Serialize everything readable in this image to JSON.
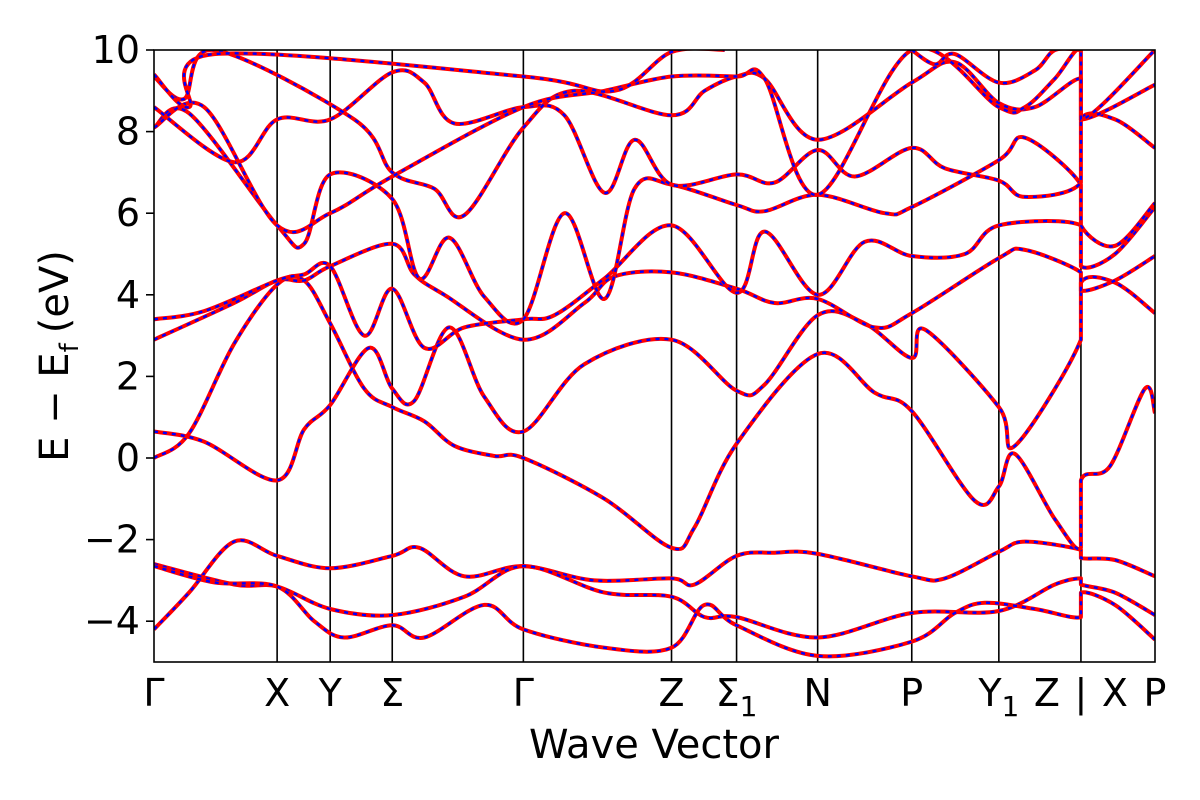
{
  "chart_data": {
    "type": "line",
    "xlabel": "Wave Vector",
    "ylabel_main": "E − E",
    "ylabel_sub": "f",
    "ylabel_unit": "(eV)",
    "ylim": [
      -5,
      10
    ],
    "yticks": [
      10,
      8,
      6,
      4,
      2,
      0,
      -2,
      -4
    ],
    "ytick_labels": [
      "10",
      "8",
      "6",
      "4",
      "2",
      "0",
      "−2",
      "−4"
    ],
    "kpoints": [
      {
        "label": "Γ",
        "sub": "",
        "x": 0.0
      },
      {
        "label": "X",
        "sub": "",
        "x": 1.23
      },
      {
        "label": "Y",
        "sub": "",
        "x": 1.76
      },
      {
        "label": "Σ",
        "sub": "",
        "x": 2.38
      },
      {
        "label": "Γ",
        "sub": "",
        "x": 3.69
      },
      {
        "label": "Z",
        "sub": "",
        "x": 5.17
      },
      {
        "label": "Σ",
        "sub": "1",
        "x": 5.82
      },
      {
        "label": "N",
        "sub": "",
        "x": 6.63
      },
      {
        "label": "P",
        "sub": "",
        "x": 7.57
      },
      {
        "label": "Y",
        "sub": "1",
        "x": 8.44
      },
      {
        "label": "Z",
        "sub": "",
        "x": 9.26
      },
      {
        "label": "X",
        "sub": "",
        "x": 9.26
      },
      {
        "label": "P",
        "sub": "",
        "x": 10.0
      }
    ],
    "xlim": [
      0,
      10
    ],
    "break_label": "|",
    "series_colors": {
      "solid": "#ff0000",
      "dashed": "#0000ff"
    },
    "bands": [
      [
        [
          0,
          -4.2
        ],
        [
          0.35,
          -3.3
        ],
        [
          0.8,
          -2.05
        ],
        [
          1.23,
          -2.4
        ],
        [
          1.76,
          -2.7
        ],
        [
          2.38,
          -2.4
        ],
        [
          2.65,
          -2.2
        ],
        [
          3.1,
          -2.9
        ],
        [
          3.69,
          -2.65
        ],
        [
          4.4,
          -3.0
        ],
        [
          5.17,
          -2.95
        ],
        [
          5.4,
          -3.1
        ],
        [
          5.82,
          -2.4
        ],
        [
          6.2,
          -2.32
        ],
        [
          6.63,
          -2.35
        ],
        [
          7.57,
          -2.9
        ],
        [
          7.9,
          -2.95
        ],
        [
          8.44,
          -2.3
        ],
        [
          8.7,
          -2.05
        ],
        [
          9.26,
          -2.25
        ],
        [
          9.26,
          -2.45
        ],
        [
          9.6,
          -2.5
        ],
        [
          10,
          -2.9
        ]
      ],
      [
        [
          0,
          -2.6
        ],
        [
          0.8,
          -3.1
        ],
        [
          1.23,
          -3.15
        ],
        [
          1.76,
          -3.7
        ],
        [
          2.38,
          -3.85
        ],
        [
          3.1,
          -3.4
        ],
        [
          3.69,
          -2.65
        ],
        [
          4.5,
          -3.3
        ],
        [
          5.17,
          -3.4
        ],
        [
          5.5,
          -3.9
        ],
        [
          5.82,
          -3.9
        ],
        [
          6.63,
          -4.4
        ],
        [
          7.57,
          -3.8
        ],
        [
          8.44,
          -3.75
        ],
        [
          9.0,
          -3.1
        ],
        [
          9.26,
          -2.95
        ],
        [
          9.26,
          -3.1
        ],
        [
          9.6,
          -3.3
        ],
        [
          10,
          -3.85
        ]
      ],
      [
        [
          0,
          -2.65
        ],
        [
          0.6,
          -3.05
        ],
        [
          1.23,
          -3.15
        ],
        [
          1.6,
          -4.0
        ],
        [
          1.9,
          -4.4
        ],
        [
          2.38,
          -4.1
        ],
        [
          2.7,
          -4.4
        ],
        [
          3.3,
          -3.6
        ],
        [
          3.69,
          -4.2
        ],
        [
          4.5,
          -4.65
        ],
        [
          5.17,
          -4.65
        ],
        [
          5.5,
          -3.6
        ],
        [
          5.82,
          -4.1
        ],
        [
          6.63,
          -4.85
        ],
        [
          7.57,
          -4.5
        ],
        [
          8.0,
          -3.8
        ],
        [
          8.3,
          -3.55
        ],
        [
          8.8,
          -3.7
        ],
        [
          9.26,
          -3.9
        ],
        [
          9.26,
          -3.3
        ],
        [
          9.6,
          -3.6
        ],
        [
          10,
          -4.45
        ]
      ],
      [
        [
          0,
          0.0
        ],
        [
          0.35,
          0.6
        ],
        [
          0.8,
          2.8
        ],
        [
          1.23,
          4.25
        ],
        [
          1.5,
          4.35
        ],
        [
          1.76,
          3.3
        ],
        [
          2.1,
          1.7
        ],
        [
          2.38,
          1.25
        ],
        [
          2.7,
          0.9
        ],
        [
          3.0,
          0.3
        ],
        [
          3.4,
          0.05
        ],
        [
          3.69,
          0.0
        ],
        [
          4.5,
          -1.0
        ],
        [
          5.17,
          -2.2
        ],
        [
          5.4,
          -1.7
        ],
        [
          5.82,
          0.35
        ],
        [
          6.63,
          2.55
        ],
        [
          7.2,
          1.6
        ],
        [
          7.57,
          1.15
        ],
        [
          8.2,
          -1.05
        ],
        [
          8.44,
          -0.7
        ],
        [
          8.6,
          0.1
        ],
        [
          9.0,
          -1.5
        ],
        [
          9.26,
          -2.2
        ],
        [
          9.26,
          -0.55
        ],
        [
          9.55,
          -0.2
        ],
        [
          9.9,
          1.7
        ],
        [
          10,
          1.1
        ]
      ],
      [
        [
          0,
          0.65
        ],
        [
          0.5,
          0.4
        ],
        [
          1.23,
          -0.55
        ],
        [
          1.5,
          0.7
        ],
        [
          1.76,
          1.3
        ],
        [
          2.15,
          2.7
        ],
        [
          2.38,
          1.7
        ],
        [
          2.6,
          1.4
        ],
        [
          2.95,
          3.2
        ],
        [
          3.3,
          1.5
        ],
        [
          3.69,
          0.65
        ],
        [
          4.3,
          2.3
        ],
        [
          5.17,
          2.9
        ],
        [
          5.82,
          1.65
        ],
        [
          6.1,
          1.8
        ],
        [
          6.63,
          3.5
        ],
        [
          7.1,
          3.3
        ],
        [
          7.57,
          2.45
        ],
        [
          7.7,
          3.15
        ],
        [
          8.44,
          1.25
        ],
        [
          8.6,
          0.3
        ],
        [
          9.26,
          2.9
        ],
        [
          9.26,
          4.3
        ],
        [
          9.6,
          4.3
        ],
        [
          10,
          3.55
        ]
      ],
      [
        [
          0,
          2.9
        ],
        [
          0.8,
          3.8
        ],
        [
          1.23,
          4.35
        ],
        [
          1.5,
          4.35
        ],
        [
          1.76,
          4.7
        ],
        [
          2.38,
          5.25
        ],
        [
          2.6,
          4.5
        ],
        [
          2.9,
          4.0
        ],
        [
          3.69,
          2.9
        ],
        [
          4.3,
          3.8
        ],
        [
          4.6,
          4.45
        ],
        [
          5.17,
          4.55
        ],
        [
          5.82,
          4.15
        ],
        [
          6.2,
          3.8
        ],
        [
          6.63,
          3.9
        ],
        [
          7.2,
          3.2
        ],
        [
          7.57,
          3.55
        ],
        [
          8.44,
          4.9
        ],
        [
          8.7,
          5.1
        ],
        [
          9.26,
          4.55
        ],
        [
          9.26,
          4.1
        ],
        [
          9.6,
          4.35
        ],
        [
          10,
          4.95
        ]
      ],
      [
        [
          0,
          3.4
        ],
        [
          0.5,
          3.6
        ],
        [
          1.23,
          4.35
        ],
        [
          1.5,
          4.5
        ],
        [
          1.76,
          4.7
        ],
        [
          2.1,
          3.0
        ],
        [
          2.38,
          4.15
        ],
        [
          2.7,
          2.7
        ],
        [
          3.1,
          3.2
        ],
        [
          3.69,
          3.4
        ],
        [
          4.0,
          3.5
        ],
        [
          4.5,
          4.4
        ],
        [
          5.17,
          5.7
        ],
        [
          5.82,
          4.05
        ],
        [
          6.1,
          5.55
        ],
        [
          6.63,
          4.0
        ],
        [
          7.1,
          5.3
        ],
        [
          7.57,
          4.95
        ],
        [
          8.1,
          5.0
        ],
        [
          8.44,
          5.7
        ],
        [
          9.26,
          5.7
        ],
        [
          9.26,
          4.7
        ],
        [
          9.6,
          5.0
        ],
        [
          10,
          6.15
        ]
      ],
      [
        [
          0,
          8.1
        ],
        [
          0.35,
          8.45
        ],
        [
          1.23,
          5.7
        ],
        [
          1.5,
          5.25
        ],
        [
          1.76,
          6.95
        ],
        [
          2.38,
          6.35
        ],
        [
          2.65,
          4.4
        ],
        [
          2.95,
          5.4
        ],
        [
          3.3,
          3.95
        ],
        [
          3.69,
          3.4
        ],
        [
          4.1,
          6.0
        ],
        [
          4.5,
          3.9
        ],
        [
          4.8,
          6.6
        ],
        [
          5.17,
          6.7
        ],
        [
          5.82,
          6.2
        ],
        [
          6.1,
          6.05
        ],
        [
          6.63,
          6.45
        ],
        [
          7.3,
          6.0
        ],
        [
          7.57,
          6.15
        ],
        [
          8.44,
          7.3
        ],
        [
          8.7,
          7.85
        ],
        [
          9.26,
          6.7
        ],
        [
          9.26,
          5.7
        ],
        [
          9.6,
          5.2
        ],
        [
          10,
          6.25
        ]
      ],
      [
        [
          0,
          8.6
        ],
        [
          0.8,
          7.25
        ],
        [
          1.23,
          8.3
        ],
        [
          1.76,
          8.3
        ],
        [
          2.38,
          9.45
        ],
        [
          2.7,
          9.2
        ],
        [
          3.0,
          8.2
        ],
        [
          3.69,
          8.6
        ],
        [
          4.1,
          8.4
        ],
        [
          4.5,
          6.5
        ],
        [
          4.8,
          7.8
        ],
        [
          5.17,
          6.7
        ],
        [
          5.82,
          6.95
        ],
        [
          6.2,
          6.75
        ],
        [
          6.63,
          7.55
        ],
        [
          7.0,
          6.9
        ],
        [
          7.57,
          7.6
        ],
        [
          7.9,
          7.1
        ],
        [
          8.44,
          6.8
        ],
        [
          8.7,
          6.4
        ],
        [
          9.26,
          6.75
        ],
        [
          9.26,
          8.3
        ],
        [
          9.6,
          8.3
        ],
        [
          10,
          7.6
        ]
      ],
      [
        [
          0,
          9.35
        ],
        [
          0.3,
          8.8
        ],
        [
          0.6,
          10.0
        ],
        [
          2.0,
          8.3
        ],
        [
          2.38,
          7.0
        ],
        [
          2.8,
          6.6
        ],
        [
          3.1,
          5.95
        ],
        [
          3.69,
          8.1
        ],
        [
          4.2,
          9.0
        ],
        [
          5.17,
          8.4
        ],
        [
          5.5,
          9.0
        ],
        [
          5.82,
          9.35
        ],
        [
          6.1,
          9.3
        ],
        [
          6.63,
          7.8
        ],
        [
          7.57,
          9.2
        ],
        [
          8.0,
          9.7
        ],
        [
          8.44,
          8.7
        ],
        [
          8.8,
          8.6
        ],
        [
          9.26,
          9.3
        ],
        [
          9.26,
          8.3
        ],
        [
          10,
          9.15
        ]
      ],
      [
        [
          0,
          8.1
        ],
        [
          0.5,
          8.6
        ],
        [
          1.23,
          5.7
        ],
        [
          1.76,
          6.0
        ],
        [
          2.38,
          6.9
        ],
        [
          3.69,
          8.6
        ],
        [
          4.5,
          9.0
        ],
        [
          5.17,
          9.35
        ],
        [
          5.82,
          9.35
        ],
        [
          6.1,
          9.3
        ],
        [
          6.63,
          6.45
        ],
        [
          7.57,
          10.0
        ],
        [
          8.44,
          8.6
        ],
        [
          8.7,
          8.6
        ],
        [
          9.0,
          9.3
        ],
        [
          9.26,
          10.0
        ],
        [
          9.26,
          8.3
        ],
        [
          10,
          10.0
        ]
      ],
      [
        [
          0,
          9.4
        ],
        [
          0.35,
          8.6
        ],
        [
          0.6,
          9.9
        ],
        [
          3.69,
          9.35
        ],
        [
          4.6,
          9.0
        ],
        [
          5.17,
          9.95
        ],
        [
          5.7,
          10.0
        ]
      ],
      [
        [
          7.57,
          10.0
        ],
        [
          7.8,
          9.65
        ],
        [
          8.0,
          9.9
        ],
        [
          8.44,
          9.2
        ],
        [
          8.8,
          9.5
        ],
        [
          9.0,
          10.0
        ],
        [
          9.26,
          10.0
        ]
      ]
    ]
  }
}
